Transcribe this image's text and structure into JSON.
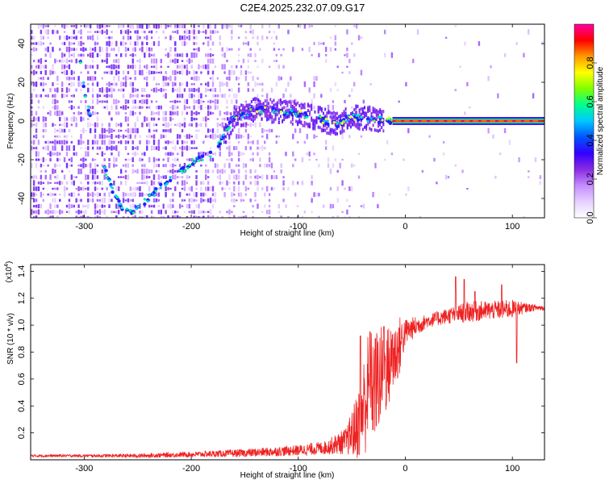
{
  "title": "C2E4.2025.232.07.09.G17",
  "chart_data": [
    {
      "type": "heatmap",
      "name": "spectrogram",
      "xlabel": "Height of straight line (km)",
      "ylabel": "Frequency (Hz)",
      "xlim": [
        -350,
        130
      ],
      "ylim": [
        -50,
        50
      ],
      "xticks": [
        -300,
        -200,
        -100,
        0,
        100
      ],
      "yticks": [
        -40,
        -20,
        0,
        20,
        40
      ],
      "colorbar": {
        "label": "Normalized spectral amplitude",
        "range": [
          0,
          1
        ],
        "ticks": [
          "0.0",
          "0.2",
          "0.4",
          "0.6",
          "0.8"
        ],
        "colors": [
          "#ffffff",
          "#e6d0ff",
          "#c48cff",
          "#8a2be2",
          "#3200ff",
          "#0055ff",
          "#00c8ff",
          "#00ff90",
          "#7fff00",
          "#ffff00",
          "#ff9900",
          "#ff0000",
          "#ff00a0"
        ]
      },
      "signal_track": [
        {
          "x": -305,
          "y": 35
        },
        {
          "x": -298,
          "y": 10
        },
        {
          "x": -293,
          "y": 0
        },
        {
          "x": -285,
          "y": -18
        },
        {
          "x": -275,
          "y": -34
        },
        {
          "x": -265,
          "y": -45
        },
        {
          "x": -255,
          "y": -47
        },
        {
          "x": -240,
          "y": -40
        },
        {
          "x": -225,
          "y": -32
        },
        {
          "x": -210,
          "y": -26
        },
        {
          "x": -195,
          "y": -20
        },
        {
          "x": -178,
          "y": -16
        },
        {
          "x": -160,
          "y": 2
        },
        {
          "x": -140,
          "y": 6
        },
        {
          "x": -120,
          "y": 5
        },
        {
          "x": -100,
          "y": 4
        },
        {
          "x": -80,
          "y": 1
        },
        {
          "x": -65,
          "y": -2
        },
        {
          "x": -50,
          "y": 2
        },
        {
          "x": -30,
          "y": 1
        },
        {
          "x": -10,
          "y": 0
        },
        {
          "x": 20,
          "y": 0
        },
        {
          "x": 60,
          "y": 0
        },
        {
          "x": 100,
          "y": 0
        },
        {
          "x": 130,
          "y": 0
        }
      ]
    },
    {
      "type": "line",
      "name": "snr",
      "xlabel": "Height of straight line (km)",
      "ylabel": "SNR (10 * v/v)",
      "y_multiplier": "(x10",
      "y_multiplier_exp": "4",
      "xlim": [
        -350,
        130
      ],
      "ylim": [
        0,
        1.45
      ],
      "xticks": [
        -300,
        -200,
        -100,
        0,
        100
      ],
      "yticks": [
        "0.2",
        "0.4",
        "0.6",
        "0.8",
        "1.0",
        "1.2",
        "1.4"
      ],
      "color": "#ee2222",
      "envelope": [
        {
          "x": -350,
          "mean": 0.03,
          "amp": 0.01
        },
        {
          "x": -300,
          "mean": 0.03,
          "amp": 0.01
        },
        {
          "x": -250,
          "mean": 0.03,
          "amp": 0.015
        },
        {
          "x": -200,
          "mean": 0.04,
          "amp": 0.02
        },
        {
          "x": -150,
          "mean": 0.05,
          "amp": 0.03
        },
        {
          "x": -100,
          "mean": 0.07,
          "amp": 0.04
        },
        {
          "x": -75,
          "mean": 0.09,
          "amp": 0.05
        },
        {
          "x": -55,
          "mean": 0.14,
          "amp": 0.1
        },
        {
          "x": -45,
          "mean": 0.25,
          "amp": 0.25
        },
        {
          "x": -35,
          "mean": 0.5,
          "amp": 0.45
        },
        {
          "x": -25,
          "mean": 0.6,
          "amp": 0.4
        },
        {
          "x": -15,
          "mean": 0.7,
          "amp": 0.3
        },
        {
          "x": -5,
          "mean": 0.85,
          "amp": 0.22
        },
        {
          "x": 0,
          "mean": 0.95,
          "amp": 0.1
        },
        {
          "x": 20,
          "mean": 1.03,
          "amp": 0.05
        },
        {
          "x": 40,
          "mean": 1.07,
          "amp": 0.06
        },
        {
          "x": 60,
          "mean": 1.1,
          "amp": 0.08
        },
        {
          "x": 80,
          "mean": 1.11,
          "amp": 0.07
        },
        {
          "x": 100,
          "mean": 1.12,
          "amp": 0.07
        },
        {
          "x": 115,
          "mean": 1.13,
          "amp": 0.03
        },
        {
          "x": 130,
          "mean": 1.13,
          "amp": 0.02
        }
      ],
      "spikes": [
        {
          "x": -42,
          "y": 0.92
        },
        {
          "x": -33,
          "y": 0.95
        },
        {
          "x": -28,
          "y": 0.9
        },
        {
          "x": -20,
          "y": 0.99
        },
        {
          "x": -12,
          "y": 0.93
        },
        {
          "x": 47,
          "y": 1.36
        },
        {
          "x": 55,
          "y": 1.34
        },
        {
          "x": 65,
          "y": 1.25
        },
        {
          "x": 90,
          "y": 1.3
        },
        {
          "x": 104,
          "y": 1.43
        },
        {
          "x": 104,
          "y": 0.72
        }
      ]
    }
  ]
}
